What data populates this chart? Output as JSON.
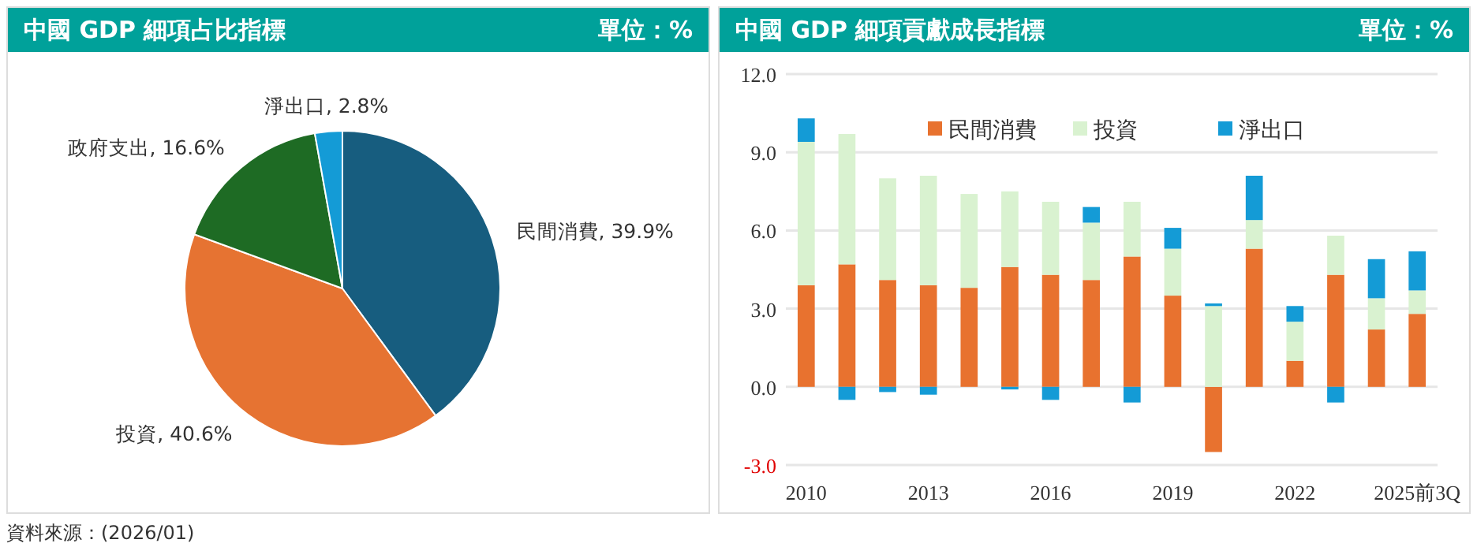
{
  "chart_data": [
    {
      "type": "pie",
      "title": "中國 GDP 細項占比指標",
      "subtitle": "單位：%",
      "categories": [
        "民間消費",
        "投資",
        "政府支出",
        "淨出口"
      ],
      "values": [
        39.9,
        40.6,
        16.6,
        2.8
      ],
      "value_labels": [
        "39.9%",
        "40.6%",
        "16.6%",
        "2.8%"
      ],
      "colors": [
        "#175d7f",
        "#e67332",
        "#1e6b24",
        "#149bd6"
      ],
      "annotations": [
        "資料來源：(2026/01)"
      ]
    },
    {
      "type": "bar",
      "stacked": true,
      "title": "中國 GDP 細項貢獻成長指標",
      "subtitle": "單位：%",
      "categories": [
        "2010",
        null,
        null,
        "2013",
        null,
        null,
        "2016",
        null,
        null,
        "2019",
        null,
        null,
        "2022",
        null,
        null,
        "2025前3Q"
      ],
      "series": [
        {
          "name": "民間消費",
          "color": "#e8722f",
          "values": [
            3.9,
            4.7,
            4.1,
            3.9,
            3.8,
            4.6,
            4.3,
            4.1,
            5.0,
            3.5,
            -2.5,
            5.3,
            1.0,
            4.3,
            2.2,
            2.8
          ]
        },
        {
          "name": "投資",
          "color": "#d9f2d0",
          "values": [
            5.5,
            5.0,
            3.9,
            4.2,
            3.6,
            2.9,
            2.8,
            2.2,
            2.1,
            1.8,
            3.1,
            1.1,
            1.5,
            1.5,
            1.2,
            0.9
          ]
        },
        {
          "name": "淨出口",
          "color": "#149bd6",
          "values": [
            0.9,
            -0.5,
            -0.2,
            -0.3,
            0.0,
            -0.1,
            -0.5,
            0.6,
            -0.6,
            0.8,
            0.1,
            1.7,
            0.6,
            -0.6,
            1.5,
            1.5
          ]
        }
      ],
      "ylim": [
        -3,
        12
      ],
      "yticks": [
        {
          "value": -3,
          "label": "-3.0"
        },
        {
          "value": 0,
          "label": "0.0"
        },
        {
          "value": 3,
          "label": "3.0"
        },
        {
          "value": 6,
          "label": "6.0"
        },
        {
          "value": 9,
          "label": "9.0"
        },
        {
          "value": 12,
          "label": "12.0"
        }
      ],
      "grid": "y",
      "legend": "top"
    }
  ]
}
